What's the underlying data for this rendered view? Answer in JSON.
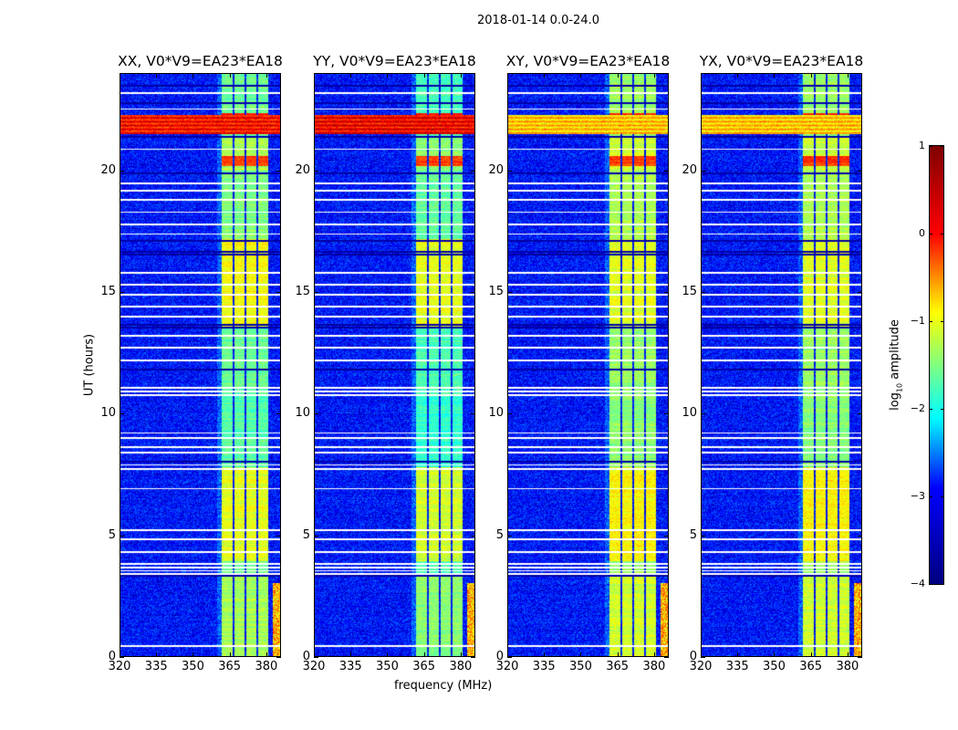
{
  "chart_data": {
    "type": "heatmap",
    "title": "2018-01-14 0.0-24.0",
    "xlabel": "frequency (MHz)",
    "ylabel": "UT (hours)",
    "xlim": [
      320,
      386
    ],
    "ylim": [
      0,
      24
    ],
    "xticks": [
      "320",
      "335",
      "350",
      "365",
      "380"
    ],
    "xtick_values": [
      320,
      335,
      350,
      365,
      380
    ],
    "yticks": [
      "0",
      "5",
      "10",
      "15",
      "20"
    ],
    "ytick_values": [
      0,
      5,
      10,
      15,
      20
    ],
    "panels": [
      {
        "title": "XX, V0*V9=EA23*EA18",
        "band_scale": 1.0,
        "rfi_level": 0.3
      },
      {
        "title": "YY, V0*V9=EA23*EA18",
        "band_scale": 1.1,
        "rfi_level": 0.4
      },
      {
        "title": "XY, V0*V9=EA23*EA18",
        "band_scale": 0.85,
        "rfi_level": -0.6
      },
      {
        "title": "YX, V0*V9=EA23*EA18",
        "band_scale": 0.85,
        "rfi_level": -0.6
      }
    ],
    "subbands_mhz": [
      [
        362,
        366.2
      ],
      [
        367,
        371.2
      ],
      [
        372,
        376.2
      ],
      [
        377,
        381.2
      ]
    ],
    "background_log_amp": -3.3,
    "band_levels": [
      {
        "from": 0,
        "to": 3.3,
        "value": -1.3
      },
      {
        "from": 3.9,
        "to": 7.8,
        "value": -1.0
      },
      {
        "from": 7.8,
        "to": 10.8,
        "value": -1.7
      },
      {
        "from": 11.2,
        "to": 13.5,
        "value": -1.6
      },
      {
        "from": 13.5,
        "to": 17.2,
        "value": -0.9
      },
      {
        "from": 17.2,
        "to": 20.0,
        "value": -1.5
      },
      {
        "from": 20.0,
        "to": 21.4,
        "value": -1.3
      },
      {
        "from": 22.4,
        "to": 24,
        "value": -1.6
      }
    ],
    "bright_events": [
      {
        "from": 20.2,
        "to": 20.6,
        "value": 0.1
      },
      {
        "from": 22.0,
        "to": 22.4,
        "value": 0.2
      }
    ],
    "broadband_rfi_hours": [
      21.5,
      22.3
    ],
    "flagged_hours": [
      0.4,
      3.38,
      3.52,
      3.66,
      3.8,
      4.3,
      4.8,
      5.2,
      6.9,
      7.7,
      7.88,
      8.4,
      8.6,
      9.0,
      9.2,
      10.75,
      10.9,
      11.05,
      12.2,
      12.7,
      13.2,
      14.0,
      14.4,
      14.9,
      15.3,
      15.8,
      17.4,
      17.8,
      18.3,
      18.8,
      19.2,
      19.5,
      20.9,
      22.55,
      23.2
    ],
    "dark_hours": [
      3.3,
      8.0,
      11.8,
      13.55,
      13.65,
      16.55,
      16.65,
      17.1,
      19.9,
      21.4,
      22.8,
      23.5
    ],
    "colorbar": {
      "label": "log",
      "label_sub": "10",
      "label_rest": " amplitude",
      "range": [
        -4,
        1
      ],
      "colormap": "jet",
      "ticks": [
        "1",
        "0",
        "−1",
        "−2",
        "−3",
        "−4"
      ],
      "tick_values": [
        1,
        0,
        -1,
        -2,
        -3,
        -4
      ]
    }
  }
}
